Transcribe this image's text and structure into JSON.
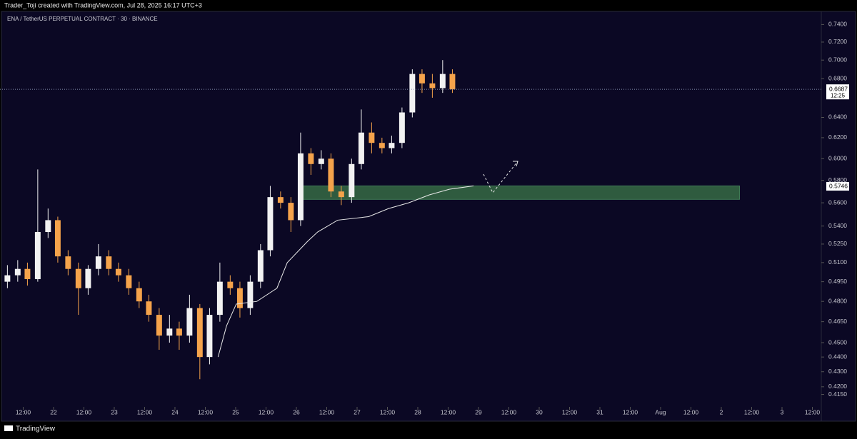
{
  "header": "Trader_Toji created with TradingView.com, Jul 28, 2025 16:17 UTC+3",
  "footer": "TradingView",
  "chart_data": {
    "type": "candlestick",
    "title": "ENA / TetherUS PERPETUAL CONTRACT · 30 · BINANCE",
    "log_scale": true,
    "up_color": "#f2f2f2",
    "down_color": "#f5a34b",
    "x": [
      21.24,
      21.41,
      21.57,
      21.74,
      21.91,
      22.07,
      22.24,
      22.41,
      22.57,
      22.74,
      22.91,
      23.07,
      23.24,
      23.41,
      23.57,
      23.74,
      23.91,
      24.07,
      24.24,
      24.41,
      24.57,
      24.74,
      24.91,
      25.07,
      25.24,
      25.41,
      25.57,
      25.74,
      25.91,
      26.07,
      26.24,
      26.41,
      26.57,
      26.74,
      26.91,
      27.07,
      27.24,
      27.41,
      27.57,
      27.74,
      27.91,
      28.07,
      28.24,
      28.41,
      28.57
    ],
    "open": [
      0.495,
      0.5,
      0.505,
      0.497,
      0.535,
      0.545,
      0.515,
      0.505,
      0.49,
      0.505,
      0.515,
      0.505,
      0.5,
      0.49,
      0.48,
      0.47,
      0.455,
      0.46,
      0.455,
      0.475,
      0.44,
      0.47,
      0.495,
      0.49,
      0.475,
      0.495,
      0.52,
      0.565,
      0.56,
      0.545,
      0.605,
      0.595,
      0.6,
      0.57,
      0.565,
      0.595,
      0.625,
      0.615,
      0.61,
      0.615,
      0.645,
      0.685,
      0.675,
      0.67,
      0.685
    ],
    "high": [
      0.508,
      0.512,
      0.51,
      0.59,
      0.555,
      0.548,
      0.52,
      0.51,
      0.508,
      0.525,
      0.52,
      0.51,
      0.505,
      0.495,
      0.485,
      0.475,
      0.47,
      0.465,
      0.485,
      0.478,
      0.475,
      0.51,
      0.5,
      0.495,
      0.5,
      0.525,
      0.575,
      0.57,
      0.565,
      0.625,
      0.61,
      0.608,
      0.605,
      0.575,
      0.6,
      0.648,
      0.635,
      0.62,
      0.622,
      0.65,
      0.69,
      0.69,
      0.685,
      0.7,
      0.69
    ],
    "low": [
      0.49,
      0.495,
      0.492,
      0.495,
      0.53,
      0.51,
      0.5,
      0.47,
      0.485,
      0.5,
      0.5,
      0.495,
      0.485,
      0.475,
      0.465,
      0.445,
      0.45,
      0.445,
      0.45,
      0.425,
      0.435,
      0.465,
      0.485,
      0.468,
      0.47,
      0.49,
      0.515,
      0.555,
      0.535,
      0.54,
      0.585,
      0.59,
      0.565,
      0.558,
      0.56,
      0.59,
      0.605,
      0.605,
      0.605,
      0.61,
      0.64,
      0.665,
      0.66,
      0.665,
      0.665
    ],
    "close": [
      0.5,
      0.505,
      0.497,
      0.535,
      0.545,
      0.515,
      0.505,
      0.49,
      0.505,
      0.515,
      0.505,
      0.5,
      0.49,
      0.48,
      0.47,
      0.455,
      0.46,
      0.455,
      0.475,
      0.44,
      0.47,
      0.495,
      0.49,
      0.475,
      0.495,
      0.52,
      0.565,
      0.56,
      0.545,
      0.605,
      0.595,
      0.6,
      0.57,
      0.565,
      0.595,
      0.625,
      0.615,
      0.61,
      0.615,
      0.645,
      0.685,
      0.675,
      0.67,
      0.685,
      0.6687
    ],
    "vwap": {
      "color": "#e8e8e8",
      "x": [
        24.71,
        24.85,
        25.01,
        25.35,
        25.68,
        25.85,
        26.18,
        26.35,
        26.68,
        27.19,
        27.52,
        27.85,
        28.19,
        28.52,
        28.92
      ],
      "values": [
        0.44,
        0.462,
        0.478,
        0.48,
        0.49,
        0.51,
        0.527,
        0.535,
        0.545,
        0.548,
        0.555,
        0.56,
        0.567,
        0.572,
        0.575
      ]
    },
    "zone": {
      "x": [
        26.1,
        33.3
      ],
      "y": [
        0.563,
        0.575
      ],
      "color": "#2f5b3f"
    },
    "zone_price": 0.5746,
    "last_price": 0.6687,
    "countdown": "12:25",
    "xlim": [
      21.118,
      34.647
    ],
    "ylim": [
      0.407,
      0.752
    ],
    "xticks": [
      {
        "value": 21.5,
        "label": "12:00"
      },
      22,
      {
        "value": 22.5,
        "label": "12:00"
      },
      23,
      {
        "value": 23.5,
        "label": "12:00"
      },
      24,
      {
        "value": 24.5,
        "label": "12:00"
      },
      25,
      {
        "value": 25.5,
        "label": "12:00"
      },
      26,
      {
        "value": 26.5,
        "label": "12:00"
      },
      27,
      {
        "value": 27.5,
        "label": "12:00"
      },
      28,
      {
        "value": 28.5,
        "label": "12:00"
      },
      29,
      {
        "value": 29.5,
        "label": "12:00"
      },
      30,
      {
        "value": 30.5,
        "label": "12:00"
      },
      31,
      {
        "value": 31.5,
        "label": "12:00"
      },
      {
        "value": 32,
        "label": "Aug"
      },
      {
        "value": 32.5,
        "label": "12:00"
      },
      {
        "value": 33,
        "label": "2"
      },
      {
        "value": 33.5,
        "label": "12:00"
      },
      {
        "value": 34,
        "label": "3"
      },
      {
        "value": 34.5,
        "label": "12:00"
      }
    ],
    "yticks": [
      {
        "value": 0.74,
        "label": "0.7400"
      },
      {
        "value": 0.72,
        "label": "0.7200"
      },
      {
        "value": 0.7,
        "label": "0.7000"
      },
      {
        "value": 0.68,
        "label": "0.6800"
      },
      {
        "value": 0.64,
        "label": "0.6400"
      },
      {
        "value": 0.62,
        "label": "0.6200"
      },
      {
        "value": 0.6,
        "label": "0.6000"
      },
      {
        "value": 0.58,
        "label": "0.5800"
      },
      {
        "value": 0.56,
        "label": "0.5600"
      },
      {
        "value": 0.54,
        "label": "0.5400"
      },
      {
        "value": 0.525,
        "label": "0.5250"
      },
      {
        "value": 0.51,
        "label": "0.5100"
      },
      {
        "value": 0.495,
        "label": "0.4950"
      },
      {
        "value": 0.48,
        "label": "0.4800"
      },
      {
        "value": 0.465,
        "label": "0.4650"
      },
      {
        "value": 0.45,
        "label": "0.4500"
      },
      {
        "value": 0.44,
        "label": "0.4400"
      },
      {
        "value": 0.43,
        "label": "0.4300"
      },
      {
        "value": 0.42,
        "label": "0.4200"
      },
      {
        "value": 0.415,
        "label": "0.4150"
      }
    ]
  }
}
